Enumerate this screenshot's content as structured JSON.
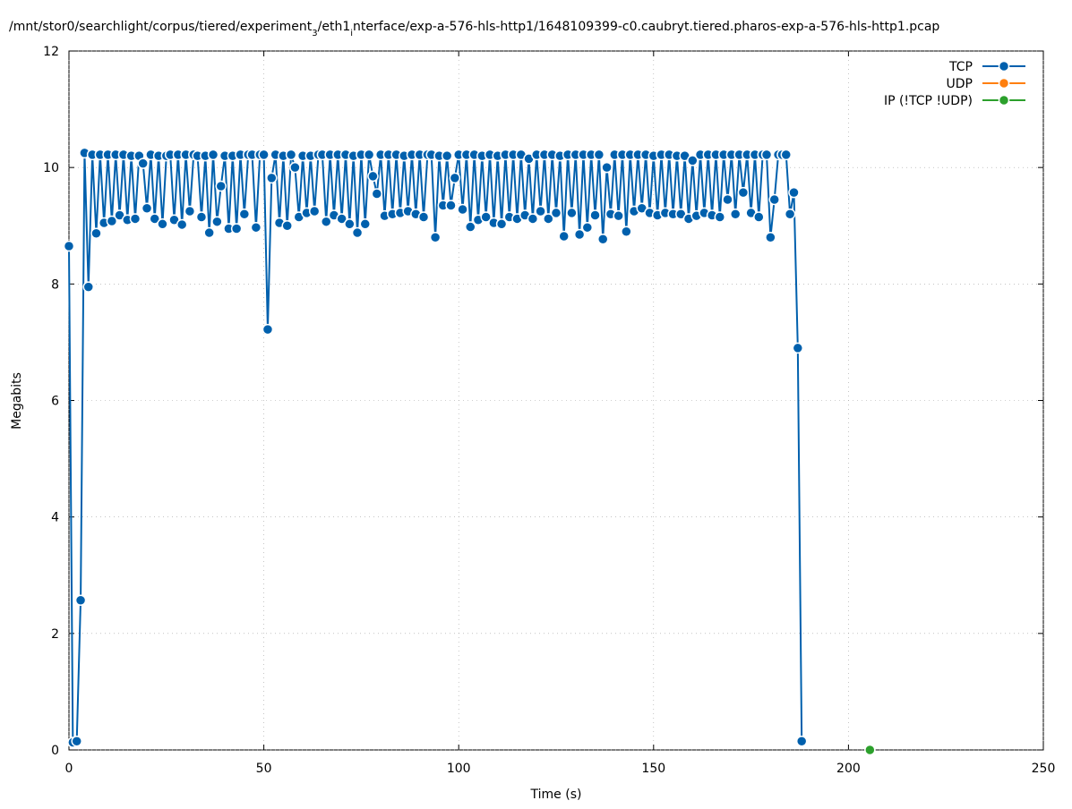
{
  "chart_data": {
    "type": "line",
    "title_segments": [
      "/mnt/stor0/searchlight/corpus/tiered/experiment",
      "3",
      "/eth1",
      "i",
      "nterface/exp-a-576-hls-http1/1648109399-c0.caubryt.tiered.pharos-exp-a-576-hls-http1.pcap"
    ],
    "x_label": "Time (s)",
    "y_label": "Megabits",
    "xlim": [
      0,
      250
    ],
    "ylim": [
      0,
      12
    ],
    "xticks": [
      0,
      50,
      100,
      150,
      200,
      250
    ],
    "yticks": [
      0,
      2,
      4,
      6,
      8,
      10,
      12
    ],
    "grid": true,
    "legend": "top-right",
    "series": [
      {
        "name": "TCP",
        "color": "#0060ad",
        "x": [
          0,
          1,
          2,
          3,
          4,
          5,
          6,
          7,
          8,
          9,
          10,
          11,
          12,
          13,
          14,
          15,
          16,
          17,
          18,
          19,
          20,
          21,
          22,
          23,
          24,
          25,
          26,
          27,
          28,
          29,
          30,
          31,
          32,
          33,
          34,
          35,
          36,
          37,
          38,
          39,
          40,
          41,
          42,
          43,
          44,
          45,
          46,
          47,
          48,
          49,
          50,
          51,
          52,
          53,
          54,
          55,
          56,
          57,
          58,
          59,
          60,
          61,
          62,
          63,
          64,
          65,
          66,
          67,
          68,
          69,
          70,
          71,
          72,
          73,
          74,
          75,
          76,
          77,
          78,
          79,
          80,
          81,
          82,
          83,
          84,
          85,
          86,
          87,
          88,
          89,
          90,
          91,
          92,
          93,
          94,
          95,
          96,
          97,
          98,
          99,
          100,
          101,
          102,
          103,
          104,
          105,
          106,
          107,
          108,
          109,
          110,
          111,
          112,
          113,
          114,
          115,
          116,
          117,
          118,
          119,
          120,
          121,
          122,
          123,
          124,
          125,
          126,
          127,
          128,
          129,
          130,
          131,
          132,
          133,
          134,
          135,
          136,
          137,
          138,
          139,
          140,
          141,
          142,
          143,
          144,
          145,
          146,
          147,
          148,
          149,
          150,
          151,
          152,
          153,
          154,
          155,
          156,
          157,
          158,
          159,
          160,
          161,
          162,
          163,
          164,
          165,
          166,
          167,
          168,
          169,
          170,
          171,
          172,
          173,
          174,
          175,
          176,
          177,
          178,
          179,
          180,
          181,
          182,
          183,
          184,
          185,
          186,
          187,
          188
        ],
        "values": [
          8.65,
          0.13,
          0.15,
          2.57,
          10.25,
          7.95,
          10.22,
          8.87,
          10.22,
          9.05,
          10.22,
          9.08,
          10.22,
          9.18,
          10.22,
          9.1,
          10.2,
          9.12,
          10.2,
          10.07,
          9.3,
          10.22,
          9.12,
          10.2,
          9.03,
          10.2,
          10.22,
          9.1,
          10.22,
          9.02,
          10.22,
          9.25,
          10.22,
          10.2,
          9.15,
          10.2,
          8.88,
          10.22,
          9.07,
          9.68,
          10.2,
          8.95,
          10.2,
          8.95,
          10.22,
          9.2,
          10.22,
          10.22,
          8.97,
          10.22,
          10.22,
          7.22,
          9.82,
          10.22,
          9.05,
          10.2,
          9.0,
          10.22,
          10.0,
          9.15,
          10.2,
          9.22,
          10.2,
          9.25,
          10.22,
          10.22,
          9.07,
          10.22,
          9.18,
          10.22,
          9.12,
          10.22,
          9.03,
          10.2,
          8.88,
          10.22,
          9.03,
          10.22,
          9.85,
          9.55,
          10.22,
          9.17,
          10.22,
          9.2,
          10.22,
          9.22,
          10.2,
          9.25,
          10.22,
          9.2,
          10.22,
          9.15,
          10.22,
          10.22,
          8.8,
          10.2,
          9.35,
          10.2,
          9.35,
          9.82,
          10.22,
          9.28,
          10.22,
          8.98,
          10.22,
          9.1,
          10.2,
          9.15,
          10.22,
          9.05,
          10.2,
          9.03,
          10.22,
          9.15,
          10.22,
          9.12,
          10.22,
          9.18,
          10.15,
          9.12,
          10.22,
          9.25,
          10.22,
          9.12,
          10.22,
          9.22,
          10.2,
          8.82,
          10.22,
          9.22,
          10.22,
          8.85,
          10.22,
          8.97,
          10.22,
          9.18,
          10.22,
          8.77,
          10.0,
          9.2,
          10.22,
          9.17,
          10.22,
          8.9,
          10.22,
          9.25,
          10.22,
          9.3,
          10.22,
          9.22,
          10.2,
          9.18,
          10.22,
          9.22,
          10.22,
          9.2,
          10.2,
          9.2,
          10.2,
          9.12,
          10.12,
          9.17,
          10.22,
          9.22,
          10.22,
          9.18,
          10.22,
          9.15,
          10.22,
          9.45,
          10.22,
          9.2,
          10.22,
          9.57,
          10.22,
          9.22,
          10.22,
          9.15,
          10.22,
          10.22,
          8.8,
          9.45,
          10.22,
          10.22,
          10.22,
          9.2,
          9.57,
          6.9,
          0.15
        ]
      },
      {
        "name": "UDP",
        "color": "#ff7f0e",
        "x": [],
        "values": []
      },
      {
        "name": "IP (!TCP  !UDP)",
        "color": "#2ca02c",
        "x": [
          205.5
        ],
        "values": [
          0
        ]
      }
    ]
  }
}
